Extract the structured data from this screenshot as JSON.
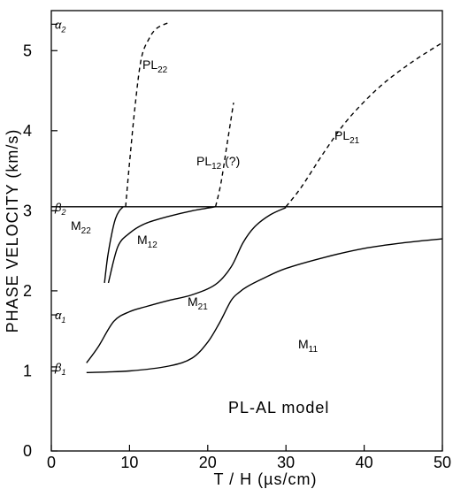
{
  "chart_data": {
    "type": "line",
    "title": "",
    "annotation": "PL-AL model",
    "xlabel": "T / H  (µs/cm)",
    "ylabel": "PHASE VELOCITY (km/s)",
    "xlim": [
      0,
      50
    ],
    "ylim": [
      0,
      5.5
    ],
    "xticks": [
      0,
      10,
      20,
      30,
      40,
      50
    ],
    "yticks": [
      0,
      1,
      2,
      3,
      4,
      5
    ],
    "reference_lines": [
      {
        "name": "α2",
        "base": "α",
        "sub": "2",
        "y": 5.33
      },
      {
        "name": "β2",
        "base": "β",
        "sub": "2",
        "y": 3.05,
        "drawn_full_width": true
      },
      {
        "name": "α1",
        "base": "α",
        "sub": "1",
        "y": 1.7
      },
      {
        "name": "β1",
        "base": "β",
        "sub": "1",
        "y": 1.05
      }
    ],
    "series": [
      {
        "name": "M11",
        "base": "M",
        "sub": "11",
        "style": "solid",
        "x": [
          4.5,
          10,
          15,
          18,
          20,
          21.5,
          23,
          24,
          25,
          27,
          30,
          35,
          40,
          45,
          50
        ],
        "y": [
          0.98,
          1.0,
          1.06,
          1.16,
          1.36,
          1.6,
          1.88,
          1.98,
          2.05,
          2.15,
          2.28,
          2.42,
          2.53,
          2.6,
          2.65
        ]
      },
      {
        "name": "M21",
        "base": "M",
        "sub": "21",
        "style": "solid",
        "x": [
          4.5,
          6,
          8,
          10,
          12,
          15,
          18,
          21,
          23,
          24.5,
          26,
          28,
          30
        ],
        "y": [
          1.1,
          1.3,
          1.62,
          1.74,
          1.8,
          1.88,
          1.95,
          2.08,
          2.3,
          2.6,
          2.8,
          2.95,
          3.04
        ]
      },
      {
        "name": "M12",
        "base": "M",
        "sub": "12",
        "style": "solid",
        "x": [
          7.3,
          8.5,
          10,
          12,
          15,
          18,
          21
        ],
        "y": [
          2.1,
          2.55,
          2.72,
          2.84,
          2.93,
          3.0,
          3.05
        ]
      },
      {
        "name": "M22",
        "base": "M",
        "sub": "22",
        "style": "solid",
        "x": [
          6.8,
          7.2,
          7.7,
          8.2,
          8.7,
          9.2
        ],
        "y": [
          2.1,
          2.42,
          2.7,
          2.9,
          3.0,
          3.05
        ]
      },
      {
        "name": "PL22",
        "base": "PL",
        "sub": "22",
        "style": "dashed",
        "x": [
          9.5,
          10,
          10.7,
          11.5,
          12.5,
          13.5,
          15
        ],
        "y": [
          3.05,
          3.6,
          4.3,
          4.9,
          5.15,
          5.28,
          5.35
        ]
      },
      {
        "name": "PL12",
        "base": "PL",
        "sub": "12",
        "suffix": " (?)",
        "style": "dashed",
        "x": [
          21,
          21.7,
          22.5,
          23.3
        ],
        "y": [
          3.05,
          3.35,
          3.85,
          4.35
        ]
      },
      {
        "name": "PL21",
        "base": "PL",
        "sub": "21",
        "style": "dashed",
        "x": [
          30,
          32,
          35,
          38,
          42,
          46,
          50
        ],
        "y": [
          3.05,
          3.3,
          3.75,
          4.15,
          4.55,
          4.85,
          5.1
        ]
      }
    ]
  }
}
